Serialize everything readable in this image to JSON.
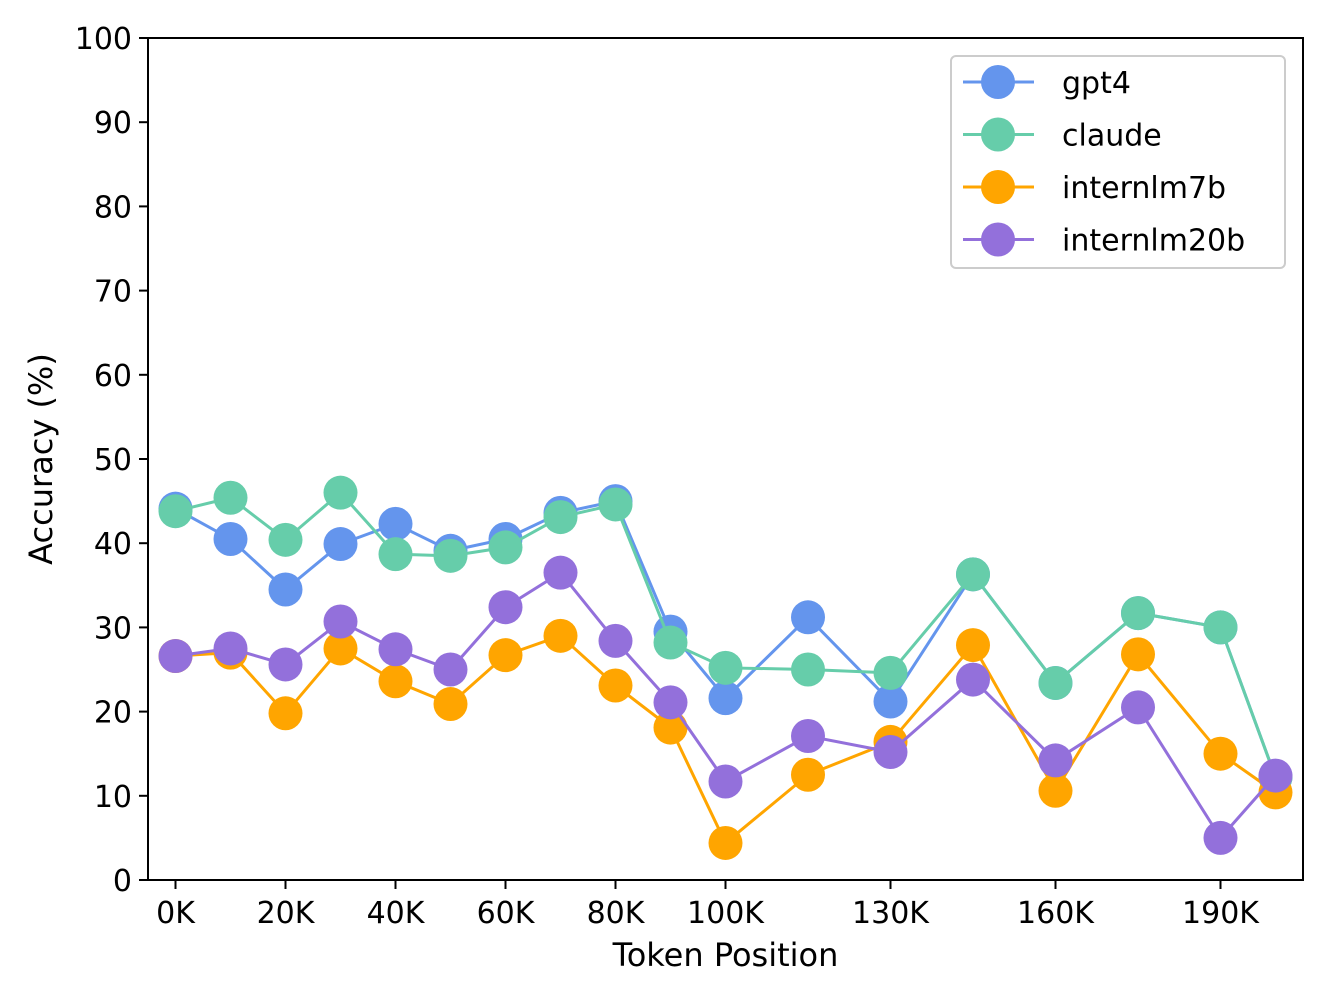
{
  "chart_data": {
    "type": "line",
    "title": "",
    "xlabel": "Token Position",
    "ylabel": "Accuracy (%)",
    "ylim": [
      0,
      100
    ],
    "xlim": [
      -5,
      205
    ],
    "yticks": [
      0,
      10,
      20,
      30,
      40,
      50,
      60,
      70,
      80,
      90,
      100
    ],
    "xticks": [
      {
        "value": 0,
        "label": "0K"
      },
      {
        "value": 20,
        "label": "20K"
      },
      {
        "value": 40,
        "label": "40K"
      },
      {
        "value": 60,
        "label": "60K"
      },
      {
        "value": 80,
        "label": "80K"
      },
      {
        "value": 100,
        "label": "100K"
      },
      {
        "value": 130,
        "label": "130K"
      },
      {
        "value": 160,
        "label": "160K"
      },
      {
        "value": 190,
        "label": "190K"
      }
    ],
    "x": [
      0,
      10,
      20,
      30,
      40,
      50,
      60,
      70,
      80,
      90,
      100,
      115,
      130,
      145,
      160,
      175,
      190,
      200
    ],
    "legend_position": "top-right",
    "grid": false,
    "series": [
      {
        "name": "gpt4",
        "color": "#6495ED",
        "values": [
          44.1,
          40.5,
          34.5,
          39.9,
          42.3,
          39.1,
          40.5,
          43.6,
          45.0,
          29.5,
          21.6,
          31.2,
          21.2,
          36.3,
          23.4,
          31.7,
          30.0,
          12.2
        ]
      },
      {
        "name": "claude",
        "color": "#66CDAA",
        "values": [
          43.8,
          45.4,
          40.4,
          46.0,
          38.7,
          38.5,
          39.5,
          43.1,
          44.6,
          28.2,
          25.2,
          25.0,
          24.6,
          36.3,
          23.4,
          31.7,
          30.0,
          12.2
        ]
      },
      {
        "name": "internlm7b",
        "color": "#FFA500",
        "values": [
          26.6,
          27.0,
          19.8,
          27.5,
          23.6,
          20.9,
          26.7,
          29.0,
          23.1,
          18.1,
          4.4,
          12.5,
          16.4,
          27.9,
          10.6,
          26.8,
          15.0,
          10.4
        ]
      },
      {
        "name": "internlm20b",
        "color": "#9370DB",
        "values": [
          26.6,
          27.5,
          25.6,
          30.7,
          27.4,
          25.0,
          32.4,
          36.5,
          28.4,
          21.1,
          11.7,
          17.1,
          15.2,
          23.8,
          14.2,
          20.5,
          5.0,
          12.4
        ]
      }
    ]
  }
}
